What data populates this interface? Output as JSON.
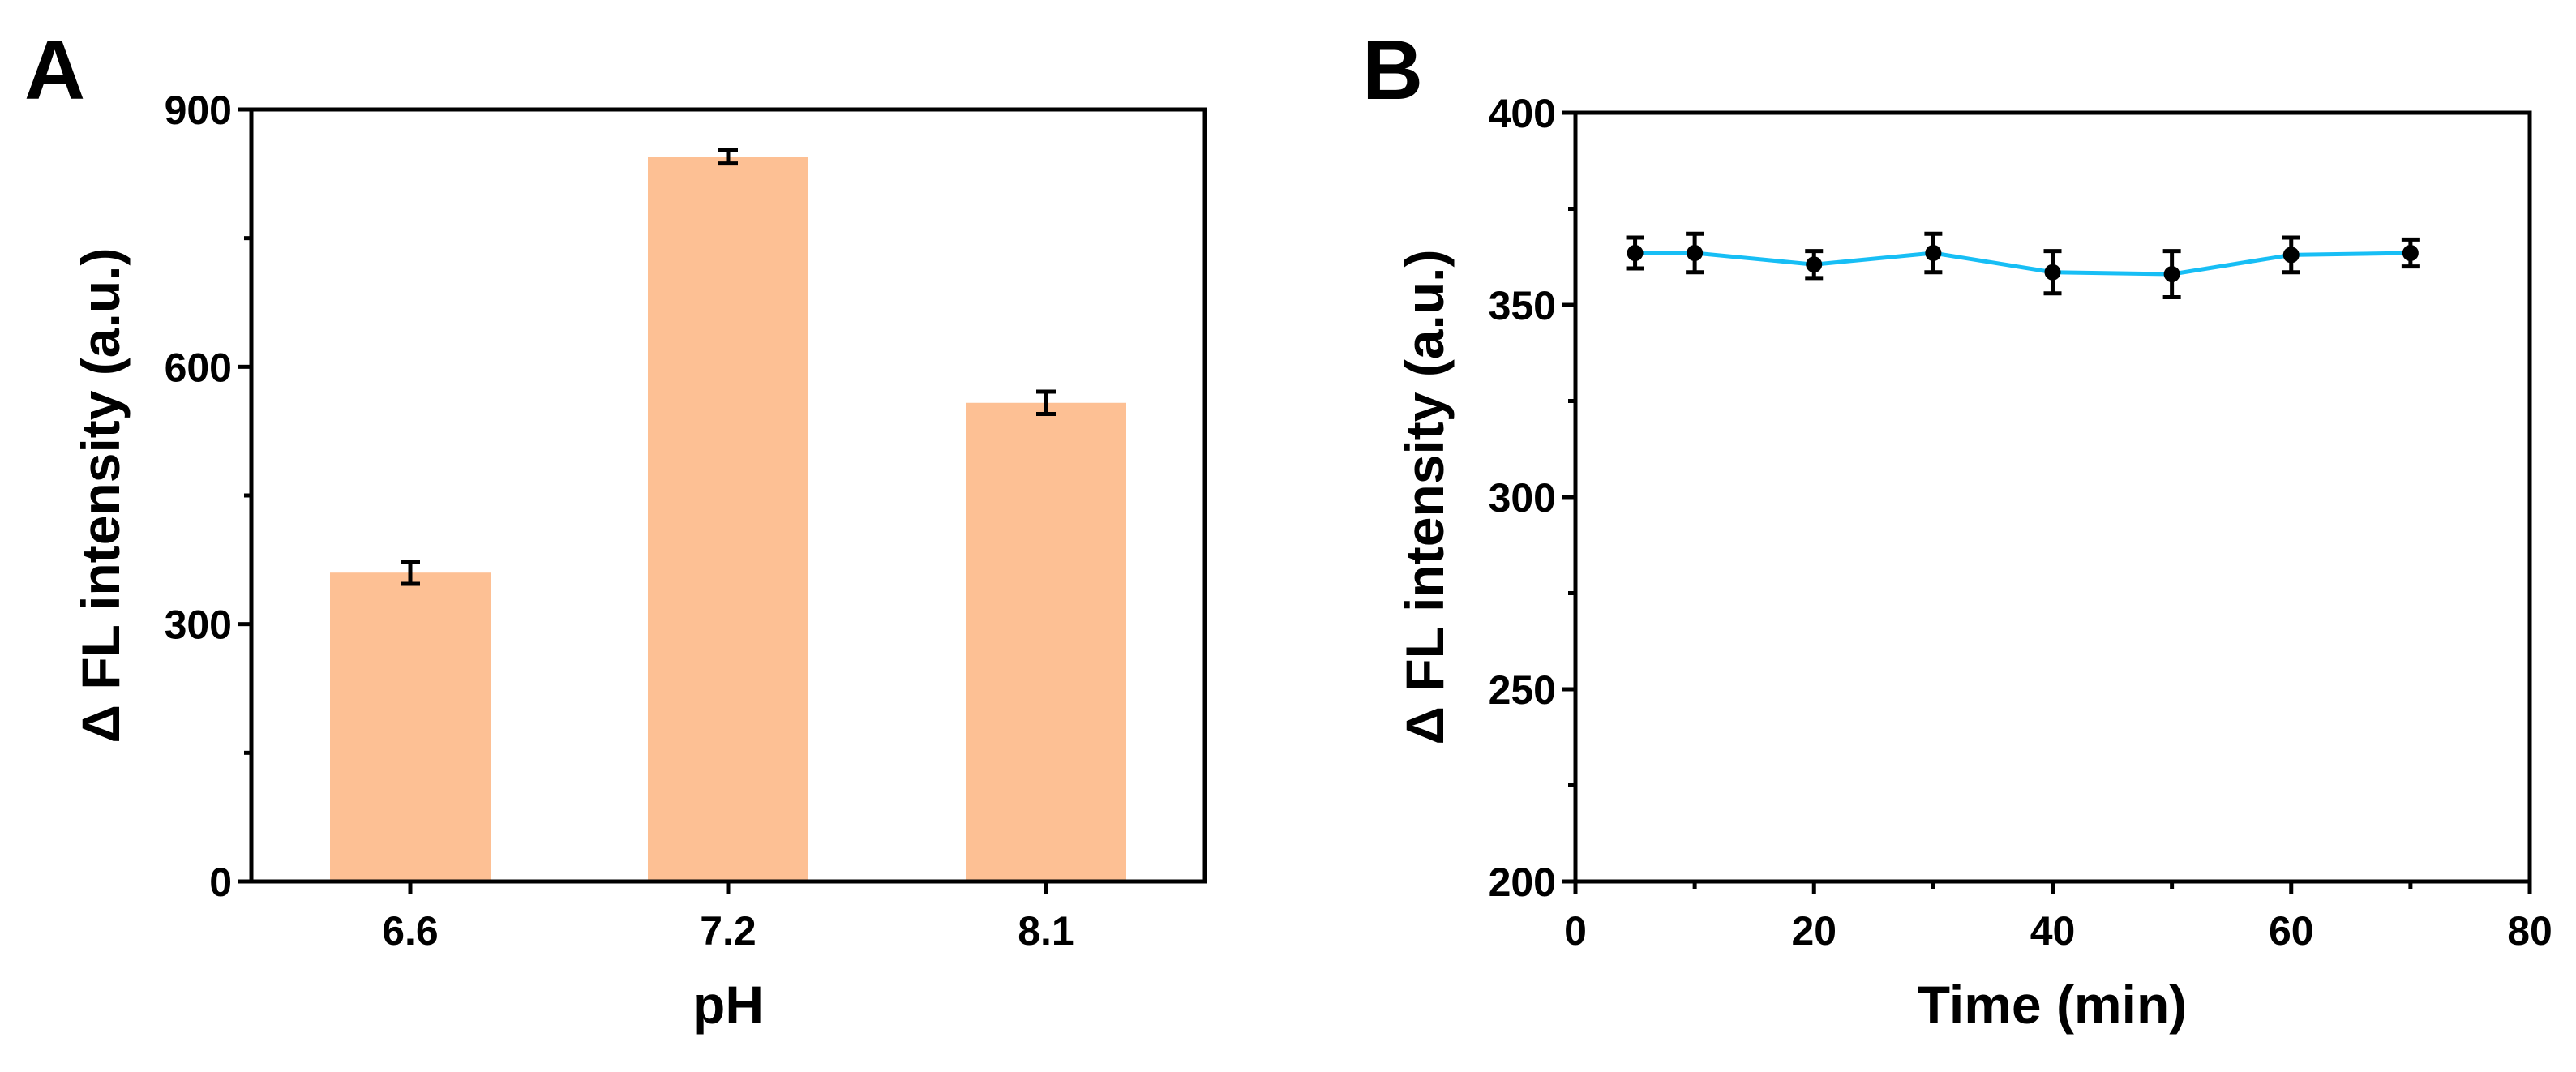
{
  "chart_data": [
    {
      "panel": "A",
      "type": "bar",
      "title": "",
      "xlabel": "pH",
      "ylabel": "Δ FL intensity (a.u.)",
      "categories": [
        "6.6",
        "7.2",
        "8.1"
      ],
      "values": [
        360,
        845,
        558
      ],
      "errors": [
        13,
        8,
        13
      ],
      "ylim": [
        0,
        900
      ],
      "yticks": [
        0,
        300,
        600,
        900
      ],
      "ytick_labels": [
        "0",
        "300",
        "600",
        "900"
      ],
      "bar_color": "#FDC094",
      "legend": "none",
      "grid": false
    },
    {
      "panel": "B",
      "type": "line",
      "title": "",
      "xlabel": "Time (min)",
      "ylabel": "Δ FL intensity (a.u.)",
      "x": [
        5,
        10,
        20,
        30,
        40,
        50,
        60,
        70
      ],
      "y": [
        363.5,
        363.5,
        360.5,
        363.5,
        358.5,
        358,
        363,
        363.5
      ],
      "errors": [
        4,
        5,
        3.5,
        5,
        5.5,
        6,
        4.5,
        3.5
      ],
      "xlim": [
        0,
        80
      ],
      "ylim": [
        200,
        400
      ],
      "xticks": [
        0,
        20,
        40,
        60,
        80
      ],
      "xtick_labels": [
        "0",
        "20",
        "40",
        "60",
        "80"
      ],
      "yticks": [
        200,
        250,
        300,
        350,
        400
      ],
      "ytick_labels": [
        "200",
        "250",
        "300",
        "350",
        "400"
      ],
      "line_color": "#17BEF5",
      "marker_color": "#000000",
      "legend": "none",
      "grid": false
    }
  ]
}
